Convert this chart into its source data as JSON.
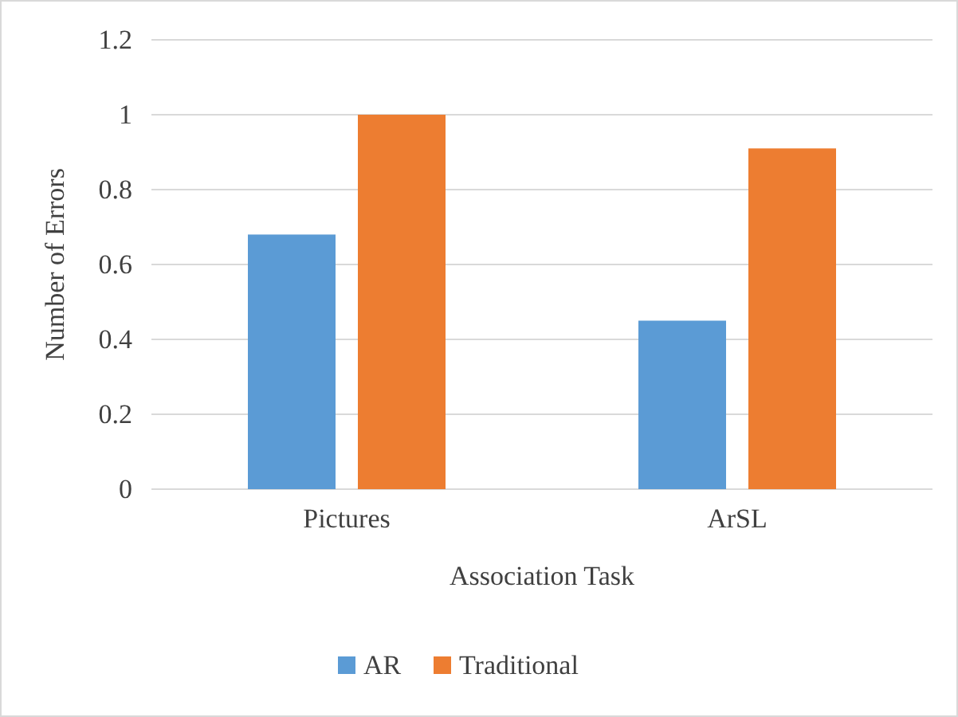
{
  "chart_data": {
    "type": "bar",
    "xlabel": "Association Task",
    "ylabel": "Number of Errors",
    "categories": [
      "Pictures",
      "ArSL"
    ],
    "series": [
      {
        "name": "AR",
        "color": "#5b9bd5",
        "values": [
          0.68,
          0.45
        ]
      },
      {
        "name": "Traditional",
        "color": "#ed7d31",
        "values": [
          1,
          0.91
        ]
      }
    ],
    "ylim": [
      0,
      1.2
    ],
    "yticks": [
      0,
      0.2,
      0.4,
      0.6,
      0.8,
      1,
      1.2
    ],
    "grid": "y",
    "legend": "bottom"
  }
}
